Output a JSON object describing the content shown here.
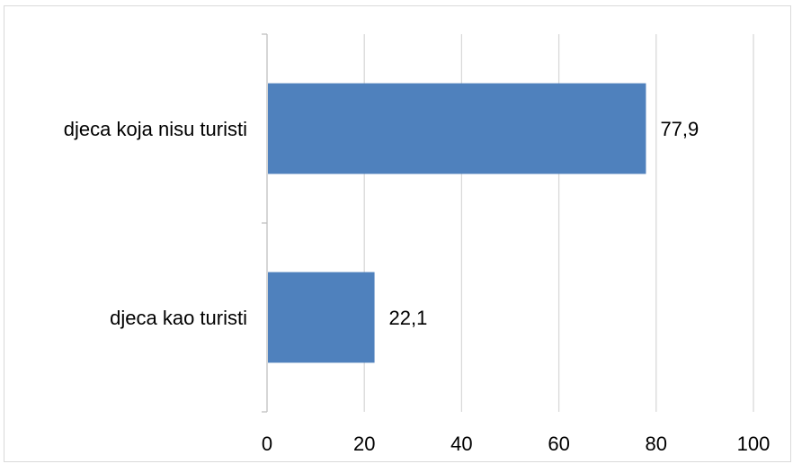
{
  "chart_data": {
    "type": "bar",
    "orientation": "horizontal",
    "categories": [
      "djeca koja nisu turisti",
      "djeca kao turisti"
    ],
    "values": [
      77.9,
      22.1
    ],
    "data_labels": [
      "77,9",
      "22,1"
    ],
    "x_ticks": [
      "0",
      "20",
      "40",
      "60",
      "80",
      "100"
    ],
    "xlim": [
      0,
      100
    ],
    "title": "",
    "xlabel": "",
    "ylabel": "",
    "grid": "vertical",
    "legend": "none",
    "colors": {
      "bar": "#4f81bd",
      "grid": "#d9d9d9",
      "axis": "#bfbfbf"
    }
  }
}
